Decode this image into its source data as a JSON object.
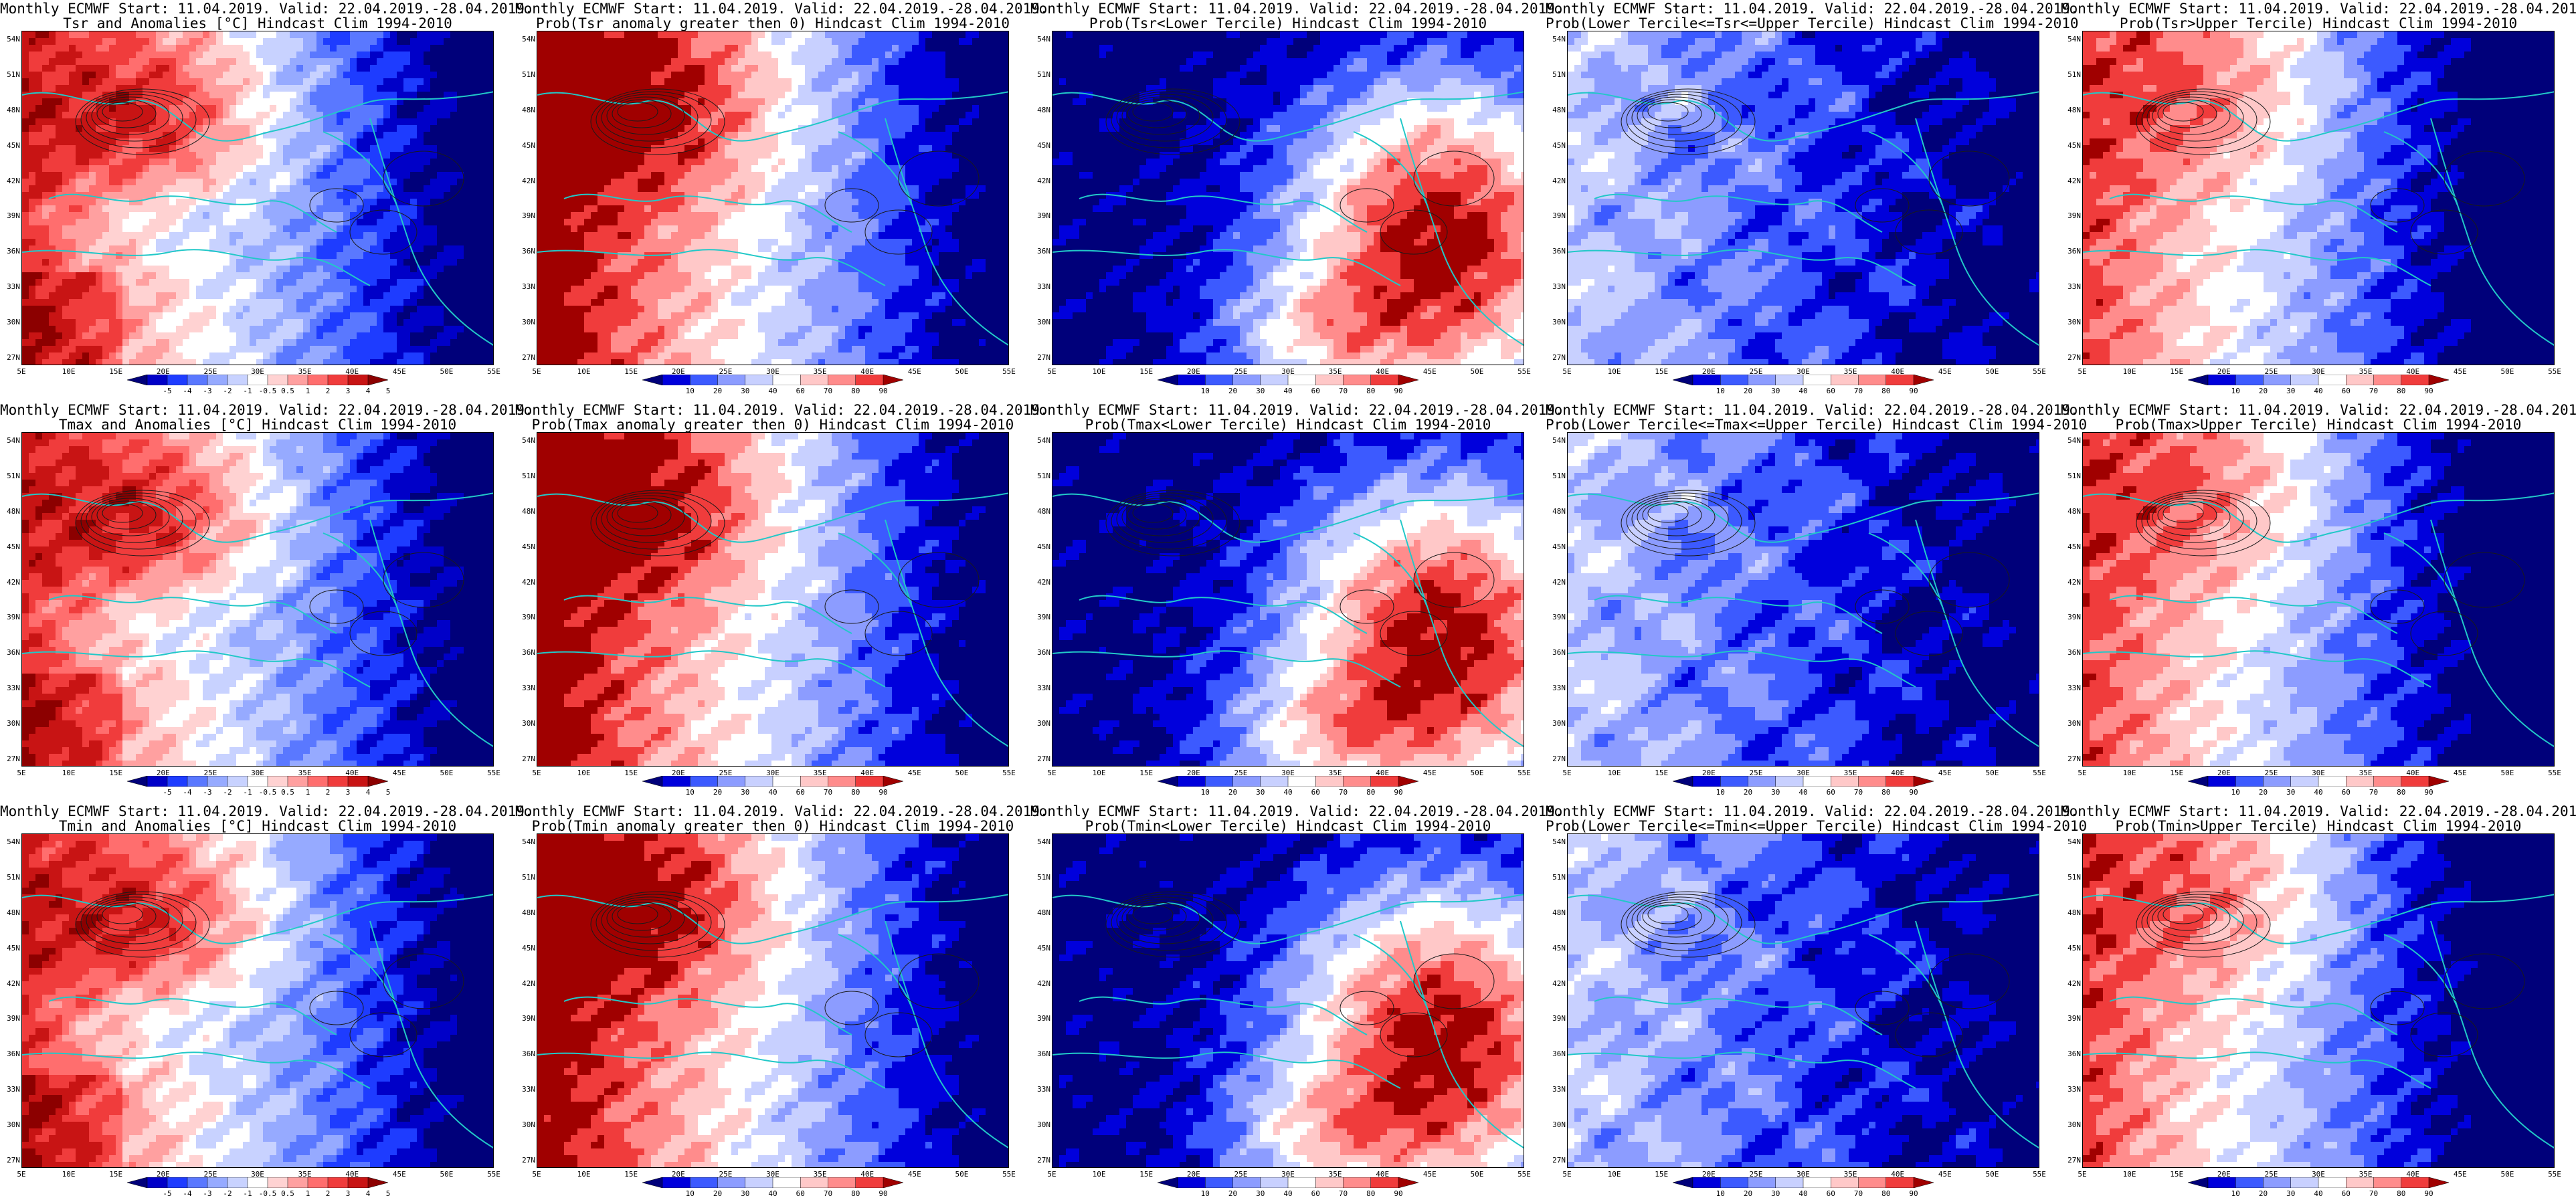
{
  "title_line1": "Monthly ECMWF Start: 11.04.2019. Valid: 22.04.2019.-28.04.2019.",
  "rows": [
    {
      "variable": "Tsr",
      "panels": [
        {
          "line2": "Tsr and Anomalies [°C] Hindcast Clim 1994-2010",
          "kind": "anom",
          "pattern": "anomA"
        },
        {
          "line2": "Prob(Tsr anomaly greater then 0) Hindcast Clim 1994-2010",
          "kind": "prob",
          "pattern": "probPos"
        },
        {
          "line2": "Prob(Tsr<Lower Tercile) Hindcast Clim 1994-2010",
          "kind": "prob",
          "pattern": "probLow"
        },
        {
          "line2": "Prob(Lower Tercile<=Tsr<=Upper Tercile) Hindcast Clim 1994-2010",
          "kind": "prob",
          "pattern": "probMid"
        },
        {
          "line2": "Prob(Tsr>Upper Tercile) Hindcast Clim 1994-2010",
          "kind": "prob",
          "pattern": "probUp"
        }
      ]
    },
    {
      "variable": "Tmax",
      "panels": [
        {
          "line2": "Tmax and Anomalies [°C] Hindcast Clim 1994-2010",
          "kind": "anom",
          "pattern": "anomA"
        },
        {
          "line2": "Prob(Tmax anomaly greater then 0) Hindcast Clim 1994-2010",
          "kind": "prob",
          "pattern": "probPos"
        },
        {
          "line2": "Prob(Tmax<Lower Tercile) Hindcast Clim 1994-2010",
          "kind": "prob",
          "pattern": "probLow"
        },
        {
          "line2": "Prob(Lower Tercile<=Tmax<=Upper Tercile) Hindcast Clim 1994-2010",
          "kind": "prob",
          "pattern": "probMid"
        },
        {
          "line2": "Prob(Tmax>Upper Tercile) Hindcast Clim 1994-2010",
          "kind": "prob",
          "pattern": "probUp"
        }
      ]
    },
    {
      "variable": "Tmin",
      "panels": [
        {
          "line2": "Tmin and Anomalies [°C] Hindcast Clim 1994-2010",
          "kind": "anom",
          "pattern": "anomA"
        },
        {
          "line2": "Prob(Tmin anomaly greater then 0) Hindcast Clim 1994-2010",
          "kind": "prob",
          "pattern": "probPos"
        },
        {
          "line2": "Prob(Tmin<Lower Tercile) Hindcast Clim 1994-2010",
          "kind": "prob",
          "pattern": "probLow"
        },
        {
          "line2": "Prob(Lower Tercile<=Tmin<=Upper Tercile) Hindcast Clim 1994-2010",
          "kind": "prob",
          "pattern": "probMid"
        },
        {
          "line2": "Prob(Tmin>Upper Tercile) Hindcast Clim 1994-2010",
          "kind": "prob",
          "pattern": "probUp"
        }
      ]
    }
  ],
  "lat_labels": [
    "54N",
    "51N",
    "48N",
    "45N",
    "42N",
    "39N",
    "36N",
    "33N",
    "30N",
    "27N"
  ],
  "lon_labels": [
    "5E",
    "10E",
    "15E",
    "20E",
    "25E",
    "30E",
    "35E",
    "40E",
    "45E",
    "50E",
    "55E"
  ],
  "colorbars": {
    "anom": {
      "labels": [
        "-5",
        "-4",
        "-3",
        "-2",
        "-1",
        "-0.5",
        "0.5",
        "1",
        "2",
        "3",
        "4",
        "5"
      ],
      "colors": [
        "#00007a",
        "#0000c8",
        "#1e3cff",
        "#5a78ff",
        "#96aaff",
        "#c8d2ff",
        "#ffffff",
        "#ffd2d2",
        "#ffa0a0",
        "#ff6e6e",
        "#f03c3c",
        "#c81414",
        "#8c0000"
      ]
    },
    "prob": {
      "labels": [
        "10",
        "20",
        "30",
        "40",
        "60",
        "70",
        "80",
        "90"
      ],
      "colors": [
        "#00007a",
        "#0000dc",
        "#3c5aff",
        "#8c9cff",
        "#c8d0ff",
        "#ffffff",
        "#ffc8c8",
        "#ff8c8c",
        "#f03c3c",
        "#a00000"
      ]
    }
  },
  "palette": {
    "coastline": "#22c8c8",
    "contour": "#1a1a1a",
    "map_border": "#000000"
  }
}
